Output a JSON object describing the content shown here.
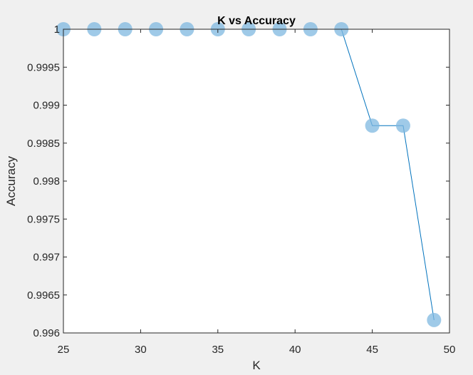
{
  "chart_data": {
    "type": "line",
    "title": "K vs Accuracy",
    "xlabel": "K",
    "ylabel": "Accuracy",
    "xlim": [
      25,
      50
    ],
    "ylim": [
      0.996,
      1
    ],
    "xticks": [
      25,
      30,
      35,
      40,
      45,
      50
    ],
    "xtick_labels": [
      "25",
      "30",
      "35",
      "40",
      "45",
      "50"
    ],
    "yticks": [
      0.996,
      0.9965,
      0.997,
      0.9975,
      0.998,
      0.9985,
      0.999,
      0.9995,
      1
    ],
    "ytick_labels": [
      "0.996",
      "0.9965",
      "0.997",
      "0.9975",
      "0.998",
      "0.9985",
      "0.999",
      "0.9995",
      "1"
    ],
    "grid": false,
    "series": [
      {
        "x": [
          25,
          27,
          29,
          31,
          33,
          35,
          37,
          39,
          41,
          43,
          45,
          47,
          49
        ],
        "y": [
          1,
          1,
          1,
          1,
          1,
          1,
          1,
          1,
          1,
          1,
          0.99873,
          0.99873,
          0.99617
        ],
        "line_color": "#0072bd",
        "marker_color": "#7fb8e0"
      }
    ]
  },
  "colors": {
    "figure_background": "#f0f0f0",
    "axes_background": "#ffffff",
    "axes_edge": "#262626"
  }
}
